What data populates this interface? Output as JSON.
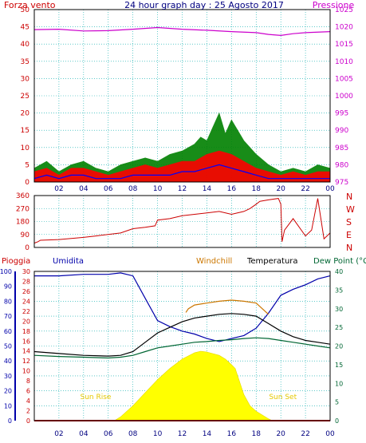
{
  "header": {
    "title": "24 hour graph day : 25 Agosto 2017",
    "left_label": "Forza vento",
    "right_label": "Pressione"
  },
  "wind_direction_labels": [
    "N",
    "W",
    "S",
    "E",
    "N"
  ],
  "colors": {
    "wind_speed": "#ff0000",
    "wind_gust": "#008000",
    "wind_avg": "#0000ff",
    "pressure": "#cc00cc",
    "direction": "#cc0000",
    "rain": "#cc0000",
    "humidity": "#0000aa",
    "windchill": "#cc7700",
    "temperature": "#000000",
    "dewpoint": "#006633",
    "solar": "#ffff00",
    "grid": "#00aaaa"
  },
  "chart_data": [
    {
      "type": "line",
      "id": "wind-pressure",
      "title": "24 hour graph day : 25 Agosto 2017",
      "ylabel": "Forza vento",
      "ylabel_right": "Pressione",
      "x_ticks": [
        "02",
        "04",
        "06",
        "08",
        "10",
        "12",
        "14",
        "16",
        "18",
        "20",
        "22",
        "00"
      ],
      "xlim": [
        0,
        24
      ],
      "ylim": [
        0,
        50
      ],
      "yticks": [
        0,
        5,
        10,
        15,
        20,
        25,
        30,
        35,
        40,
        45,
        50
      ],
      "ylim_right": [
        975,
        1025
      ],
      "yticks_right": [
        975,
        980,
        985,
        990,
        995,
        1000,
        1005,
        1010,
        1015,
        1020,
        1025
      ],
      "grid": true,
      "series": [
        {
          "key": "pressure",
          "axis": "right",
          "x": [
            0,
            2,
            4,
            6,
            8,
            10,
            12,
            14,
            16,
            18,
            19,
            20,
            21,
            22,
            24
          ],
          "y": [
            1019.2,
            1019.3,
            1018.8,
            1018.9,
            1019.3,
            1019.8,
            1019.3,
            1019.0,
            1018.6,
            1018.3,
            1017.8,
            1017.5,
            1018.0,
            1018.3,
            1018.6
          ]
        },
        {
          "key": "wind_gust",
          "x": [
            0,
            1,
            2,
            3,
            4,
            5,
            6,
            7,
            8,
            9,
            10,
            11,
            12,
            13,
            13.5,
            14,
            14.5,
            15,
            15.5,
            16,
            17,
            18,
            19,
            20,
            21,
            22,
            23,
            24
          ],
          "y": [
            4,
            6,
            3,
            5,
            6,
            4,
            3,
            5,
            6,
            7,
            6,
            8,
            9,
            11,
            13,
            12,
            16,
            20,
            14,
            18,
            12,
            8,
            5,
            3,
            4,
            3,
            5,
            4
          ]
        },
        {
          "key": "wind_speed",
          "x": [
            0,
            1,
            2,
            3,
            4,
            5,
            6,
            7,
            8,
            9,
            10,
            11,
            12,
            13,
            14,
            15,
            16,
            17,
            18,
            19,
            20,
            21,
            22,
            23,
            24
          ],
          "y": [
            3,
            4,
            2,
            4,
            4,
            3,
            2,
            3,
            4,
            5,
            4,
            5,
            6,
            6,
            8,
            9,
            8,
            6,
            4,
            3,
            2,
            3,
            2,
            3,
            3
          ]
        },
        {
          "key": "wind_avg",
          "x": [
            0,
            1,
            2,
            3,
            4,
            5,
            6,
            7,
            8,
            9,
            10,
            11,
            12,
            13,
            14,
            15,
            16,
            17,
            18,
            19,
            20,
            21,
            22,
            23,
            24
          ],
          "y": [
            1,
            2,
            1,
            2,
            2,
            1,
            1,
            1,
            2,
            2,
            2,
            2,
            3,
            3,
            4,
            5,
            4,
            3,
            2,
            1,
            1,
            1,
            1,
            1,
            1
          ]
        }
      ]
    },
    {
      "type": "line",
      "id": "wind-direction",
      "xlim": [
        0,
        24
      ],
      "ylim": [
        0,
        360
      ],
      "yticks": [
        0,
        90,
        180,
        270,
        360
      ],
      "ytick_labels": [
        "0",
        "90",
        "180",
        "270",
        "360"
      ],
      "grid": true,
      "series": [
        {
          "key": "direction",
          "x": [
            0,
            0.3,
            0.5,
            2,
            4,
            5,
            7,
            8,
            9,
            9.8,
            10,
            11,
            12,
            13,
            14,
            15,
            16,
            17,
            17.5,
            18,
            18.3,
            19,
            19.8,
            20,
            20.1,
            20.3,
            21,
            22,
            22.5,
            23,
            23.5,
            24
          ],
          "y": [
            30,
            40,
            50,
            55,
            70,
            80,
            100,
            130,
            140,
            150,
            190,
            200,
            220,
            230,
            240,
            250,
            230,
            250,
            270,
            300,
            320,
            330,
            340,
            300,
            40,
            120,
            200,
            80,
            120,
            340,
            60,
            100
          ]
        }
      ]
    },
    {
      "type": "line",
      "id": "temp-humidity",
      "xlim": [
        0,
        24
      ],
      "x_ticks": [
        "02",
        "04",
        "06",
        "08",
        "10",
        "12",
        "14",
        "16",
        "18",
        "20",
        "22",
        "00"
      ],
      "y_axes": {
        "humidity": {
          "ylim": [
            0,
            100
          ],
          "yticks": [
            0,
            10,
            20,
            30,
            40,
            50,
            60,
            70,
            80,
            90,
            100
          ]
        },
        "rain": {
          "ylim": [
            0,
            30
          ],
          "yticks": [
            0,
            2,
            4,
            6,
            8,
            10,
            12,
            14,
            16,
            18,
            20,
            22,
            24,
            26,
            28,
            30
          ]
        },
        "temperature": {
          "ylim": [
            0,
            40
          ],
          "yticks": [
            0,
            5,
            10,
            15,
            20,
            25,
            30,
            35,
            40
          ]
        }
      },
      "labels": {
        "rain": "Pioggia",
        "humidity": "Umidita",
        "windchill": "Windchill",
        "temperature": "Temperatura",
        "dewpoint": "Dew Point (°C"
      },
      "annotations": {
        "sunrise": {
          "text": "Sun Rise",
          "x": 6.5
        },
        "sunset": {
          "text": "Sun Set",
          "x": 19.3
        }
      },
      "grid": true,
      "series": [
        {
          "key": "solar",
          "axis": "temperature",
          "x": [
            6.5,
            7,
            8,
            9,
            10,
            11,
            12,
            13,
            13.5,
            14,
            15,
            15.5,
            16,
            16.3,
            16.6,
            17,
            17.5,
            18,
            18.5,
            19,
            19.3
          ],
          "y": [
            0,
            1,
            4,
            7.5,
            11,
            14,
            16.5,
            18.2,
            18.6,
            18.4,
            17.5,
            16.5,
            15,
            14,
            11,
            7,
            4,
            2.5,
            1.5,
            0.5,
            0
          ]
        },
        {
          "key": "humidity",
          "axis": "humidity",
          "x": [
            0,
            2,
            4,
            6,
            7,
            8,
            9,
            10,
            11,
            12,
            13,
            14,
            15,
            16,
            17,
            18,
            19,
            20,
            21,
            22,
            23,
            24
          ],
          "y": [
            97,
            97,
            98,
            98,
            99,
            97,
            82,
            67,
            63,
            60,
            58,
            55,
            53,
            55,
            57,
            62,
            72,
            84,
            88,
            91,
            95,
            97
          ]
        },
        {
          "key": "temperature",
          "axis": "temperature",
          "x": [
            0,
            2,
            4,
            6,
            7,
            8,
            9,
            10,
            11,
            12,
            13,
            14,
            15,
            16,
            17,
            18,
            19,
            20,
            21,
            22,
            23,
            24
          ],
          "y": [
            18.5,
            18,
            17.5,
            17.3,
            17.5,
            18.5,
            21,
            23.5,
            25,
            26.5,
            27.5,
            28,
            28.5,
            28.7,
            28.5,
            28,
            26,
            24,
            22.5,
            21.5,
            21,
            20.5
          ]
        },
        {
          "key": "windchill",
          "axis": "temperature",
          "x": [
            12.3,
            12.5,
            13,
            14,
            15,
            16,
            17,
            18,
            18.5,
            19
          ],
          "y": [
            29,
            30,
            31,
            31.5,
            32,
            32.3,
            32,
            31.5,
            30,
            28.5
          ]
        },
        {
          "key": "dewpoint",
          "axis": "temperature",
          "x": [
            0,
            2,
            4,
            6,
            7,
            8,
            9,
            10,
            11,
            12,
            13,
            14,
            15,
            16,
            17,
            18,
            19,
            20,
            21,
            22,
            23,
            24
          ],
          "y": [
            17.5,
            17.2,
            17,
            16.8,
            17,
            17.5,
            18.5,
            19.5,
            20,
            20.5,
            21,
            21.2,
            21.5,
            21.7,
            22,
            22.2,
            22,
            21.5,
            21,
            20.5,
            20,
            19.5
          ]
        },
        {
          "key": "rain",
          "axis": "rain",
          "x": [
            0,
            24
          ],
          "y": [
            0,
            0
          ]
        }
      ]
    }
  ]
}
